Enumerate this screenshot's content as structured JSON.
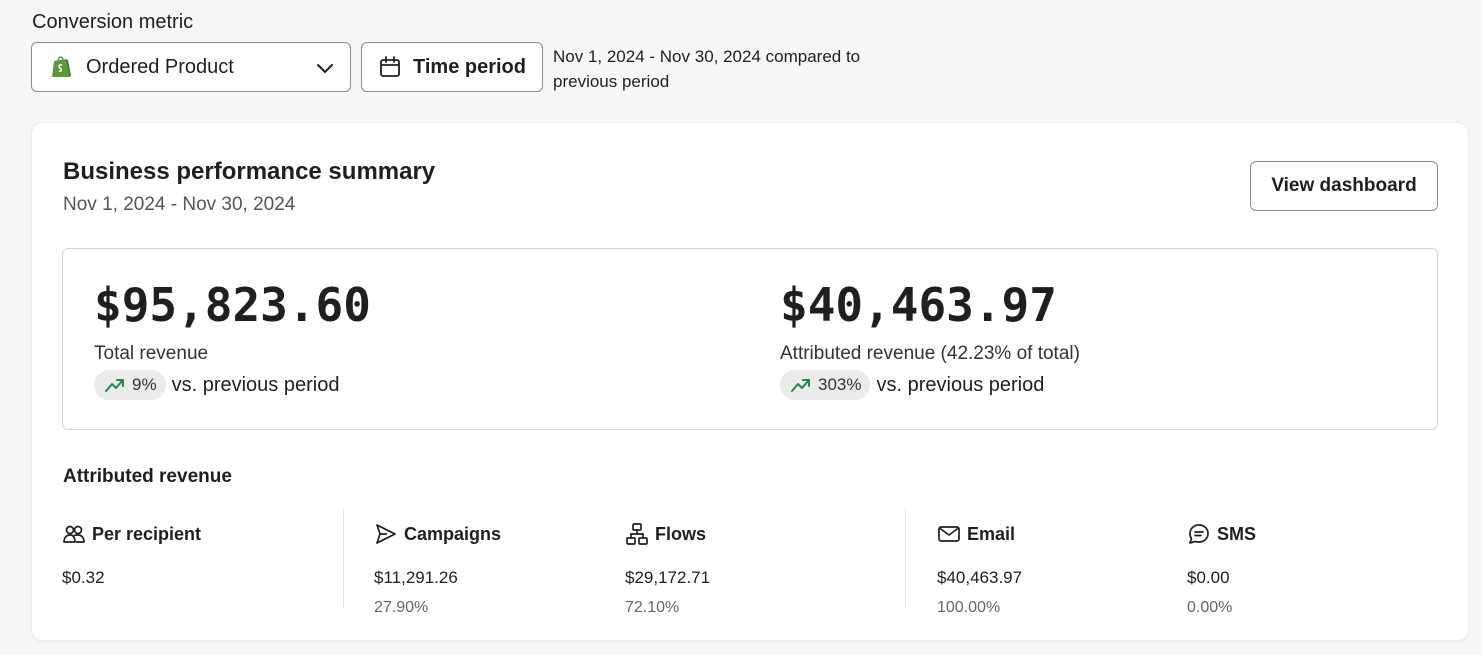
{
  "conversion_metric": {
    "label": "Conversion metric",
    "selected": "Ordered Product",
    "time_period_label": "Time period",
    "period_note": "Nov 1, 2024 - Nov 30, 2024 compared to previous period"
  },
  "card": {
    "title": "Business performance summary",
    "date_range": "Nov 1, 2024 - Nov 30, 2024",
    "view_button": "View dashboard"
  },
  "kpis": {
    "total": {
      "amount": "$95,823.60",
      "label": "Total revenue",
      "change": "9%",
      "change_suffix": "vs. previous period"
    },
    "attributed": {
      "amount": "$40,463.97",
      "label": "Attributed revenue (42.23% of total)",
      "change": "303%",
      "change_suffix": "vs. previous period"
    }
  },
  "attributed_revenue": {
    "title": "Attributed revenue",
    "columns": [
      {
        "label": "Per recipient",
        "value": "$0.32",
        "pct": "",
        "icon": "people-icon"
      },
      {
        "label": "Campaigns",
        "value": "$11,291.26",
        "pct": "27.90%",
        "icon": "send-icon"
      },
      {
        "label": "Flows",
        "value": "$29,172.71",
        "pct": "72.10%",
        "icon": "flow-icon"
      },
      {
        "label": "Email",
        "value": "$40,463.97",
        "pct": "100.00%",
        "icon": "mail-icon"
      },
      {
        "label": "SMS",
        "value": "$0.00",
        "pct": "0.00%",
        "icon": "sms-icon"
      }
    ]
  },
  "colors": {
    "trend_up": "#1f8a4c",
    "shopify_green": "#5a9a3a"
  }
}
